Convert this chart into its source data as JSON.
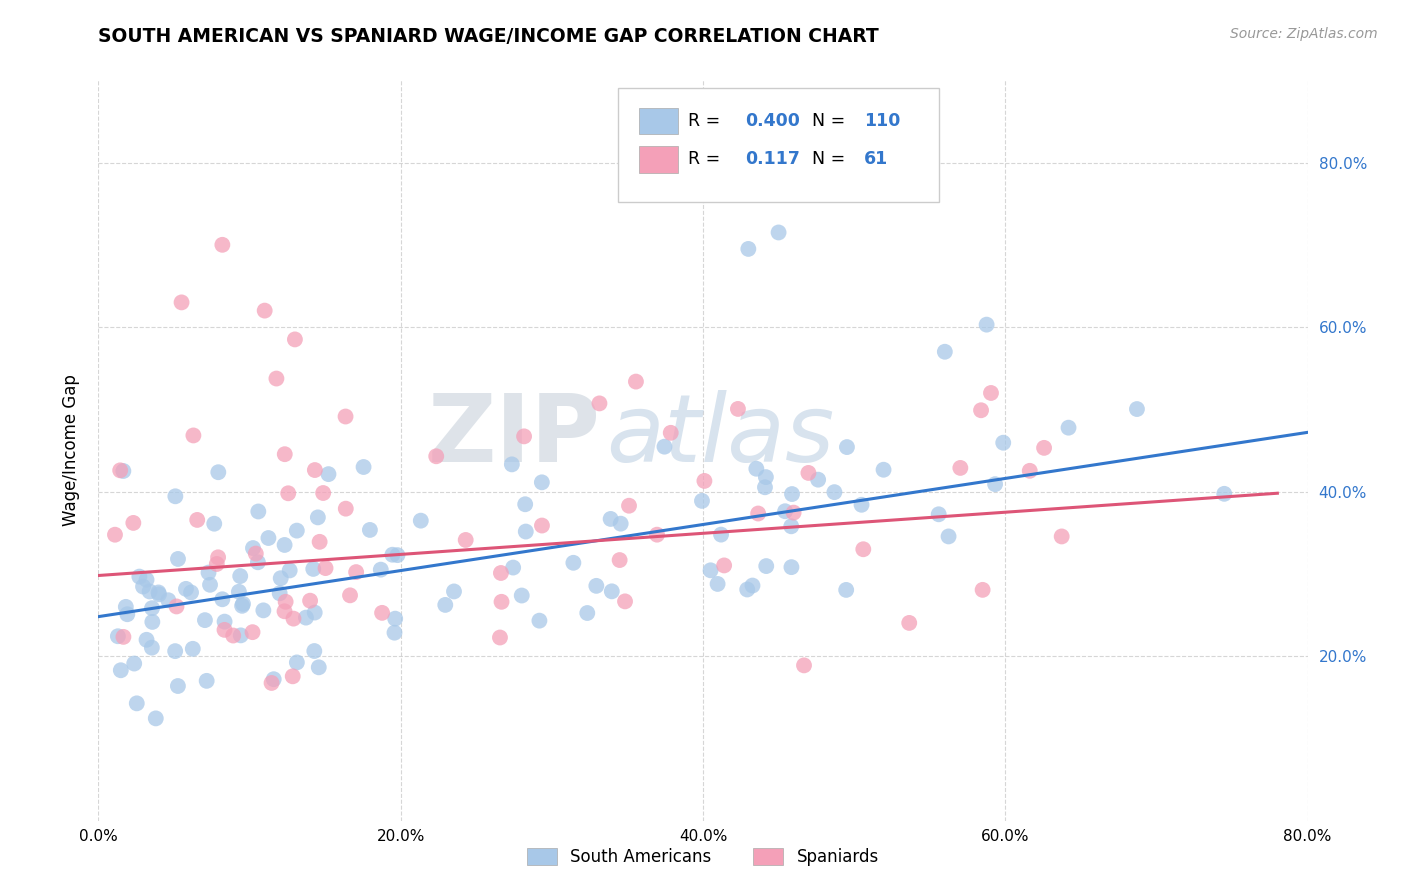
{
  "title": "SOUTH AMERICAN VS SPANIARD WAGE/INCOME GAP CORRELATION CHART",
  "source_text": "Source: ZipAtlas.com",
  "ylabel": "Wage/Income Gap",
  "xlim": [
    0.0,
    0.8
  ],
  "ylim": [
    0.0,
    0.9
  ],
  "xtick_vals": [
    0.0,
    0.2,
    0.4,
    0.6,
    0.8
  ],
  "ytick_vals": [
    0.2,
    0.4,
    0.6,
    0.8
  ],
  "blue_color": "#a8c8e8",
  "pink_color": "#f4a0b8",
  "blue_line_color": "#3377cc",
  "pink_line_color": "#dd5577",
  "legend_label_1": "South Americans",
  "legend_label_2": "Spaniards",
  "watermark_zip": "ZIP",
  "watermark_atlas": "atlas",
  "blue_line_x0": 0.0,
  "blue_line_y0": 0.248,
  "blue_line_x1": 0.8,
  "blue_line_y1": 0.472,
  "pink_line_x0": 0.0,
  "pink_line_y0": 0.298,
  "pink_line_x1": 0.78,
  "pink_line_y1": 0.398
}
